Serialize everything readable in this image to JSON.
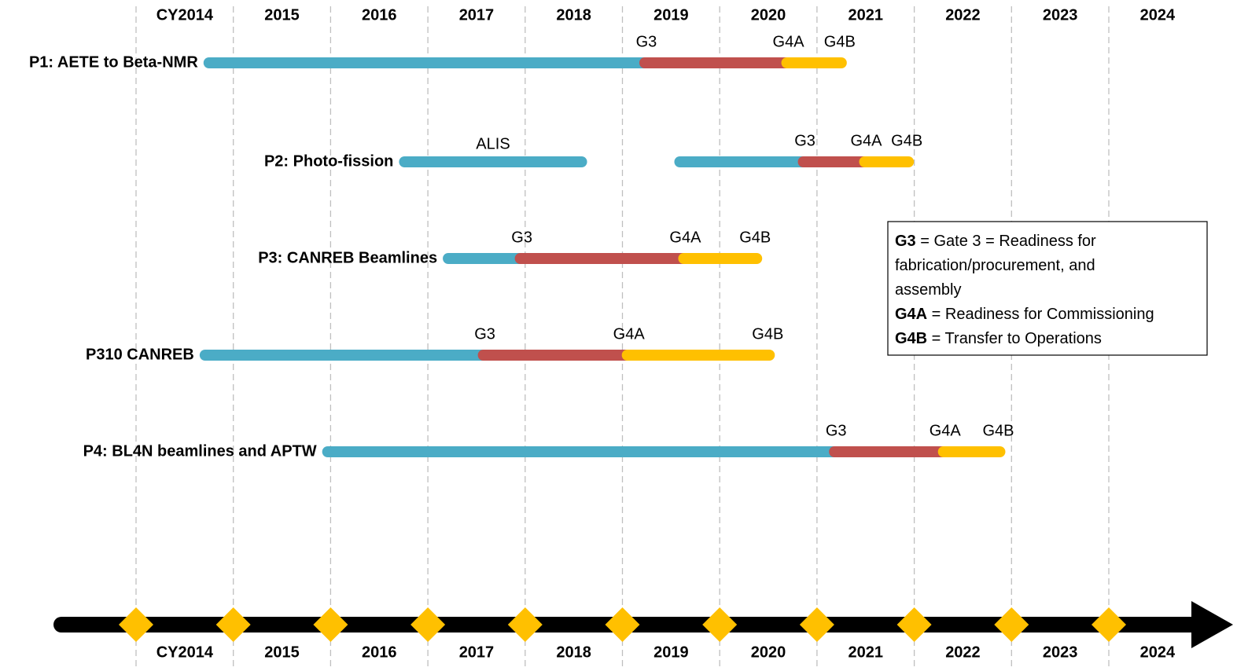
{
  "years": [
    {
      "value": 2014,
      "label": "CY2014"
    },
    {
      "value": 2015,
      "label": "2015"
    },
    {
      "value": 2016,
      "label": "2016"
    },
    {
      "value": 2017,
      "label": "2017"
    },
    {
      "value": 2018,
      "label": "2018"
    },
    {
      "value": 2019,
      "label": "2019"
    },
    {
      "value": 2020,
      "label": "2020"
    },
    {
      "value": 2021,
      "label": "2021"
    },
    {
      "value": 2022,
      "label": "2022"
    },
    {
      "value": 2023,
      "label": "2023"
    },
    {
      "value": 2024,
      "label": "2024"
    }
  ],
  "rows": [
    {
      "label": "P1: AETE to Beta-NMR",
      "segments": [
        {
          "start": 2014.75,
          "end": 2019.23,
          "color": "#4bacc6"
        },
        {
          "start": 2019.23,
          "end": 2020.69,
          "color": "#c0504d",
          "start_label": "G3"
        },
        {
          "start": 2020.69,
          "end": 2021.25,
          "color": "#ffc000",
          "start_label": "G4A",
          "end_label": "G4B"
        }
      ]
    },
    {
      "label": "P2: Photo-fission",
      "segments": [
        {
          "start": 2016.76,
          "end": 2018.58,
          "color": "#4bacc6",
          "label": "ALIS"
        },
        {
          "start": 2019.59,
          "end": 2020.86,
          "color": "#4bacc6"
        },
        {
          "start": 2020.86,
          "end": 2021.49,
          "color": "#c0504d",
          "start_label": "G3"
        },
        {
          "start": 2021.49,
          "end": 2021.94,
          "color": "#ffc000",
          "start_label": "G4A",
          "end_label": "G4B"
        }
      ]
    },
    {
      "label": "P3: CANREB Beamlines",
      "segments": [
        {
          "start": 2017.21,
          "end": 2017.95,
          "color": "#4bacc6"
        },
        {
          "start": 2017.95,
          "end": 2019.63,
          "color": "#c0504d",
          "start_label": "G3"
        },
        {
          "start": 2019.63,
          "end": 2020.38,
          "color": "#ffc000",
          "start_label": "G4A",
          "end_label": "G4B"
        }
      ]
    },
    {
      "label": "P310 CANREB",
      "segments": [
        {
          "start": 2014.71,
          "end": 2017.57,
          "color": "#4bacc6"
        },
        {
          "start": 2017.57,
          "end": 2019.05,
          "color": "#c0504d",
          "start_label": "G3"
        },
        {
          "start": 2019.05,
          "end": 2020.51,
          "color": "#ffc000",
          "start_label": "G4A",
          "end_label": "G4B"
        }
      ]
    },
    {
      "label": "P4: BL4N beamlines and APTW",
      "segments": [
        {
          "start": 2015.97,
          "end": 2021.18,
          "color": "#4bacc6"
        },
        {
          "start": 2021.18,
          "end": 2022.3,
          "color": "#c0504d",
          "start_label": "G3"
        },
        {
          "start": 2022.3,
          "end": 2022.88,
          "color": "#ffc000",
          "start_label": "G4A",
          "end_label": "G4B"
        }
      ]
    }
  ],
  "legend": [
    {
      "term": "G3",
      "lines": [
        " = Gate 3 = Readiness for",
        "fabrication/procurement, and",
        "assembly"
      ]
    },
    {
      "term": "G4A",
      "lines": [
        " = Readiness for Commissioning"
      ]
    },
    {
      "term": "G4B",
      "lines": [
        " = Transfer to Operations"
      ]
    }
  ]
}
